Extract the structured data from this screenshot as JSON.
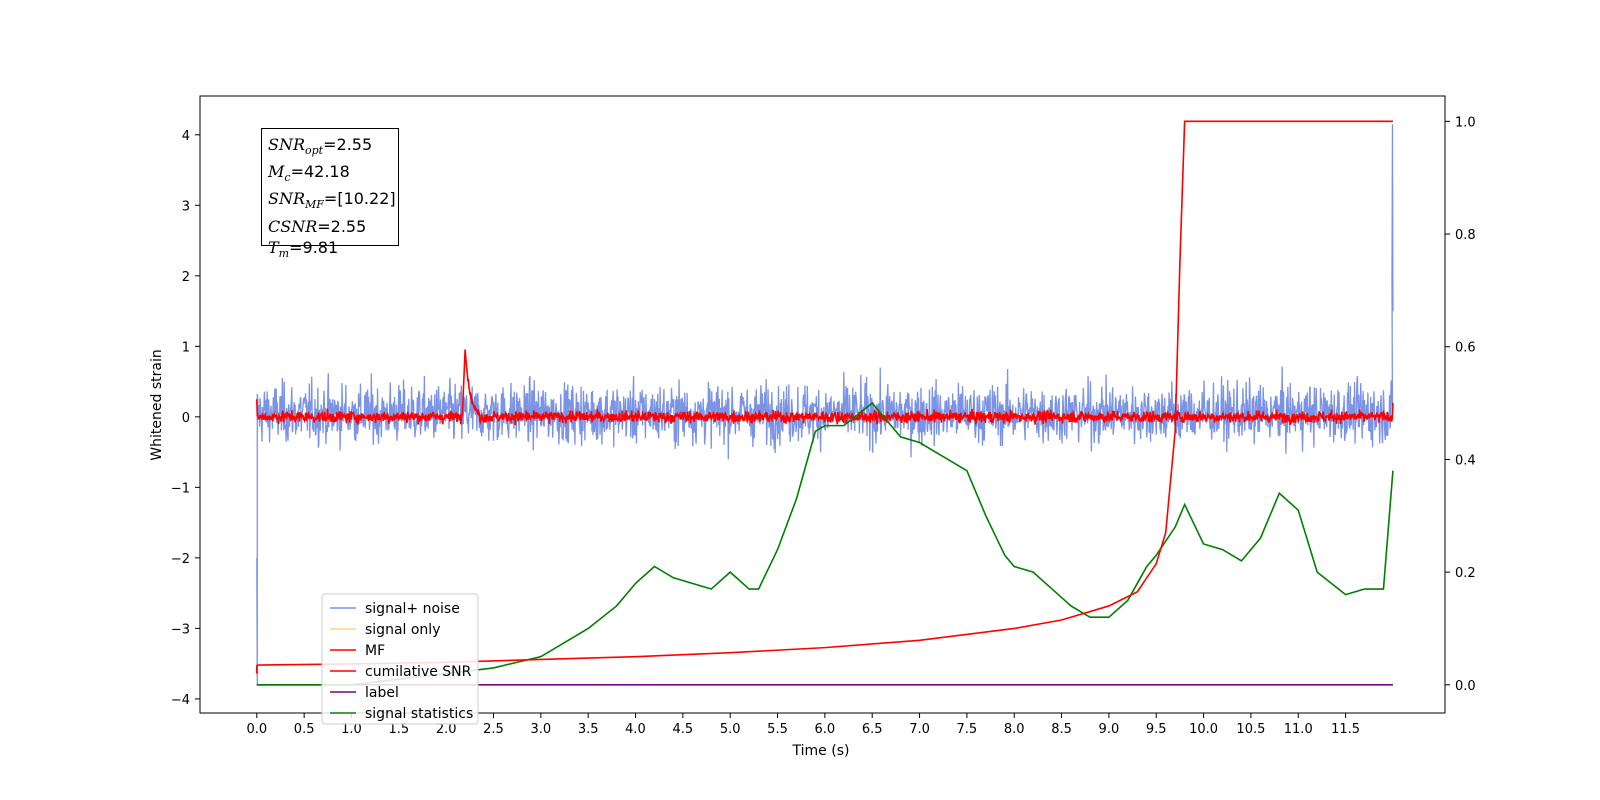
{
  "chart_data": {
    "type": "line",
    "xlabel": "Time (s)",
    "ylabel": "Whitened strain",
    "xlim": [
      -0.6,
      12.55
    ],
    "ylim": [
      -4.2,
      4.55
    ],
    "y2lim": [
      -0.05,
      1.045
    ],
    "x_ticks": [
      "0.0",
      "0.5",
      "1.0",
      "1.5",
      "2.0",
      "2.5",
      "3.0",
      "3.5",
      "4.0",
      "4.5",
      "5.0",
      "5.5",
      "6.0",
      "6.5",
      "7.0",
      "7.5",
      "8.0",
      "8.5",
      "9.0",
      "9.5",
      "10.0",
      "10.5",
      "11.0",
      "11.5"
    ],
    "y_ticks": [
      "−4",
      "−3",
      "−2",
      "−1",
      "0",
      "1",
      "2",
      "3",
      "4"
    ],
    "y2_ticks": [
      "0.0",
      "0.2",
      "0.4",
      "0.6",
      "0.8",
      "1.0"
    ],
    "legend_position": "lower-left",
    "grid": false,
    "series": [
      {
        "name": "signal+ noise",
        "color": "#7b93e6",
        "axis": "left",
        "description_values": {
          "mean": 0.05,
          "amplitude": 0.35,
          "start_spike": -3.8,
          "end_spike": 4.15
        }
      },
      {
        "name": "signal only",
        "color": "#ffd47f",
        "axis": "left",
        "values": []
      },
      {
        "name": "MF",
        "color": "#ff0000",
        "axis": "left",
        "peak": {
          "x": 2.2,
          "y": 0.98
        },
        "noise_level": 0.1
      },
      {
        "name": "cumilative SNR",
        "color": "#ff0000",
        "axis": "right",
        "x": [
          0.0,
          1.0,
          2.0,
          3.0,
          4.0,
          5.0,
          6.0,
          7.0,
          8.0,
          8.5,
          9.0,
          9.3,
          9.5,
          9.6,
          9.7,
          9.75,
          9.8,
          10.0,
          11.0,
          12.0
        ],
        "y": [
          0.035,
          0.037,
          0.04,
          0.045,
          0.05,
          0.057,
          0.066,
          0.079,
          0.1,
          0.115,
          0.14,
          0.165,
          0.215,
          0.27,
          0.45,
          0.75,
          1.0,
          1.0,
          1.0,
          1.0
        ]
      },
      {
        "name": "label",
        "color": "#800080",
        "axis": "right",
        "x": [
          0.0,
          12.0
        ],
        "y": [
          0.0,
          0.0
        ]
      },
      {
        "name": "signal statistics",
        "color": "#008000",
        "axis": "right",
        "x": [
          0.0,
          0.5,
          1.0,
          1.5,
          2.0,
          2.5,
          3.0,
          3.5,
          3.8,
          4.0,
          4.2,
          4.4,
          4.6,
          4.8,
          5.0,
          5.2,
          5.3,
          5.5,
          5.7,
          5.9,
          6.0,
          6.2,
          6.5,
          6.8,
          7.0,
          7.2,
          7.3,
          7.5,
          7.7,
          7.9,
          8.0,
          8.2,
          8.4,
          8.6,
          8.8,
          9.0,
          9.2,
          9.4,
          9.5,
          9.7,
          9.8,
          10.0,
          10.2,
          10.4,
          10.6,
          10.8,
          11.0,
          11.2,
          11.5,
          11.7,
          11.9,
          12.0
        ],
        "y": [
          0.0,
          0.0,
          0.0,
          0.01,
          0.02,
          0.03,
          0.05,
          0.1,
          0.14,
          0.18,
          0.21,
          0.19,
          0.18,
          0.17,
          0.2,
          0.17,
          0.17,
          0.24,
          0.33,
          0.45,
          0.46,
          0.46,
          0.5,
          0.44,
          0.43,
          0.41,
          0.4,
          0.38,
          0.3,
          0.23,
          0.21,
          0.2,
          0.17,
          0.14,
          0.12,
          0.12,
          0.15,
          0.21,
          0.23,
          0.28,
          0.32,
          0.25,
          0.24,
          0.22,
          0.26,
          0.34,
          0.31,
          0.2,
          0.16,
          0.17,
          0.17,
          0.38
        ]
      }
    ]
  },
  "info_box": {
    "snr_opt_label": "SNR",
    "snr_opt_sub": "opt",
    "snr_opt_value": "=2.55",
    "mc_label": "M",
    "mc_sub": "c",
    "mc_value": "=42.18",
    "snr_mf_label": "SNR",
    "snr_mf_sub": "MF",
    "snr_mf_value": "=[10.22]",
    "csnr_label": "CSNR",
    "csnr_value": "=2.55",
    "tm_label": "T",
    "tm_sub": "m",
    "tm_value": "=9.81"
  }
}
